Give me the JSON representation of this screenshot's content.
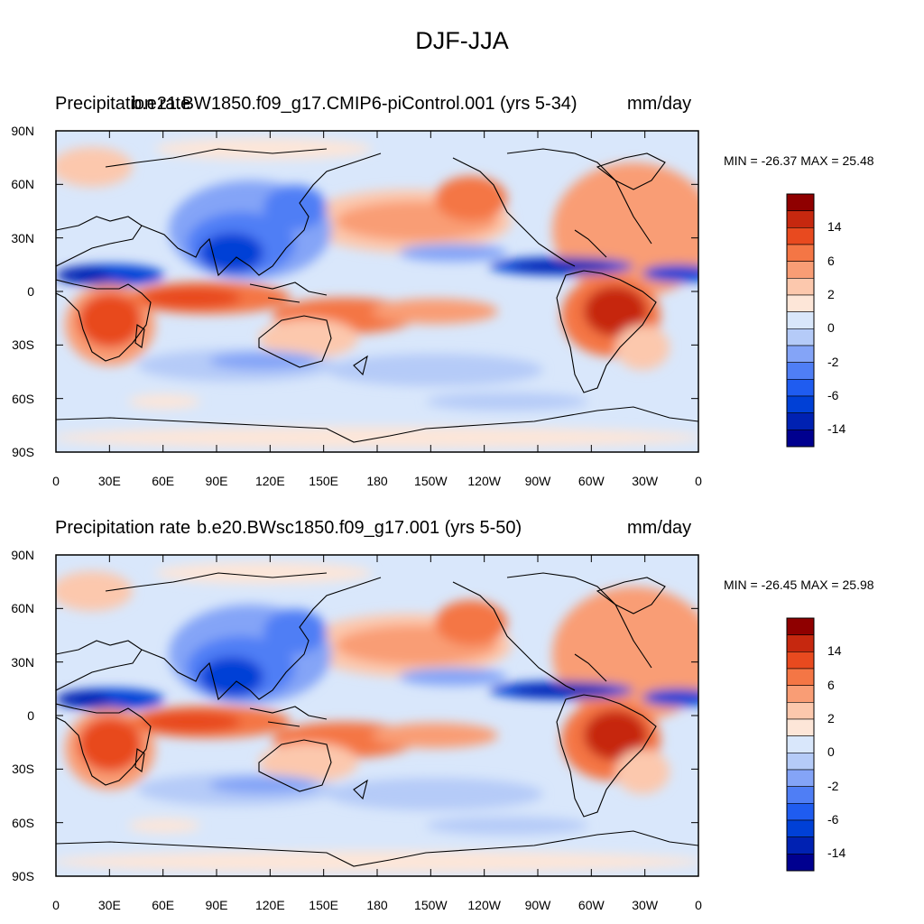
{
  "title": "DJF-JJA",
  "colorbar": {
    "colors": [
      "#00008f",
      "#0021b2",
      "#0040d6",
      "#1f5cf0",
      "#4f7ef5",
      "#84a4f7",
      "#b5cbf8",
      "#d9e7fb",
      "#fde6d8",
      "#fcc8ad",
      "#f99d75",
      "#f47645",
      "#e84a1f",
      "#c6280f",
      "#8f0000"
    ],
    "labels": [
      "-14",
      "-6",
      "-2",
      "0",
      "2",
      "6",
      "14"
    ]
  },
  "x_ticks": [
    "0",
    "30E",
    "60E",
    "90E",
    "120E",
    "150E",
    "180",
    "150W",
    "120W",
    "90W",
    "60W",
    "30W",
    "0"
  ],
  "y_ticks": [
    "90N",
    "60N",
    "30N",
    "0",
    "30S",
    "60S",
    "90S"
  ],
  "panels": [
    {
      "left_label": "Precipitation rate",
      "center_label": "b.e21.BW1850.f09_g17.CMIP6-piControl.001 (yrs 5-34)",
      "units": "mm/day",
      "minmax": "MIN = -26.37 MAX =  25.48"
    },
    {
      "left_label": "Precipitation rate",
      "center_label": "b.e20.BWsc1850.f09_g17.001 (yrs 5-50)",
      "units": "mm/day",
      "minmax": "MIN = -26.45 MAX =  25.98"
    }
  ]
}
